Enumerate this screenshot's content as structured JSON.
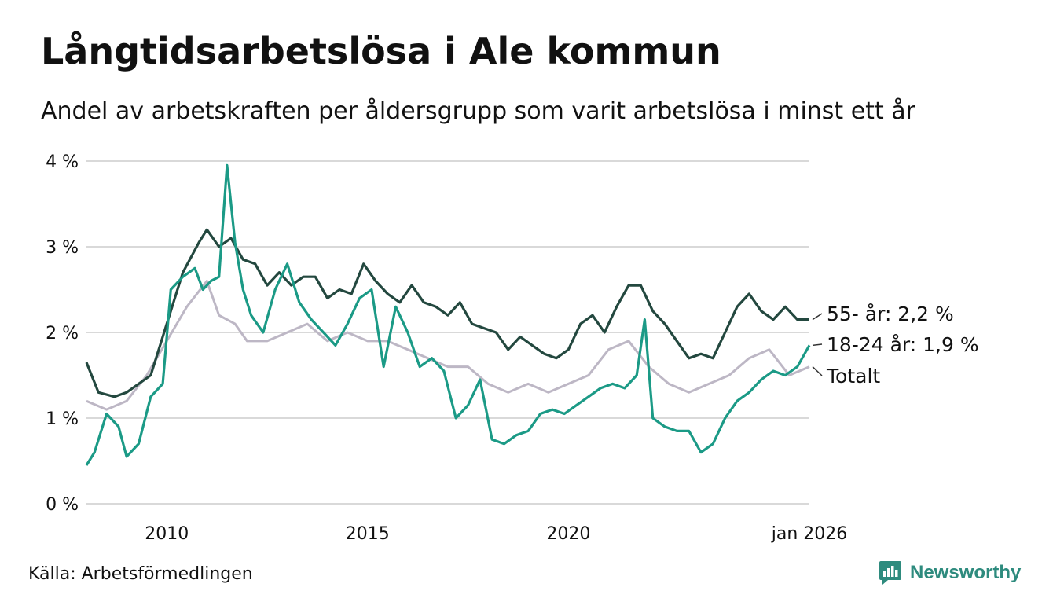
{
  "title": "Långtidsarbetslösa i Ale kommun",
  "subtitle": "Andel av arbetskraften per åldersgrupp som varit arbetslösa i minst ett år",
  "source": "Källa: Arbetsförmedlingen",
  "brand": "Newsworthy",
  "colors": {
    "s55": "#23483f",
    "s1824": "#1b9a86",
    "total": "#bdb7c5",
    "grid": "#d9d9d9",
    "brand": "#2e8b7e"
  },
  "chart_data": {
    "type": "line",
    "title": "Långtidsarbetslösa i Ale kommun",
    "xlabel": "",
    "ylabel": "",
    "xlim": [
      2008.0,
      2026.0
    ],
    "ylim": [
      0,
      4
    ],
    "y_ticks": [
      0,
      1,
      2,
      3,
      4
    ],
    "y_tick_labels": [
      "0 %",
      "1 %",
      "2 %",
      "3 %",
      "4 %"
    ],
    "x_ticks": [
      2010,
      2015,
      2020,
      2026
    ],
    "x_tick_labels": [
      "2010",
      "2015",
      "2020",
      "jan 2026"
    ],
    "series": [
      {
        "name": "Totalt",
        "label": "Totalt",
        "color": "#bdb7c5",
        "x": [
          2008.0,
          2008.5,
          2009.0,
          2009.5,
          2010.0,
          2010.5,
          2011.0,
          2011.3,
          2011.7,
          2012.0,
          2012.5,
          2013.0,
          2013.5,
          2014.0,
          2014.5,
          2015.0,
          2015.5,
          2016.0,
          2016.5,
          2017.0,
          2017.5,
          2018.0,
          2018.5,
          2019.0,
          2019.5,
          2020.0,
          2020.5,
          2021.0,
          2021.5,
          2022.0,
          2022.5,
          2023.0,
          2023.5,
          2024.0,
          2024.5,
          2025.0,
          2025.5,
          2026.0
        ],
        "y": [
          1.2,
          1.1,
          1.2,
          1.5,
          1.9,
          2.3,
          2.6,
          2.2,
          2.1,
          1.9,
          1.9,
          2.0,
          2.1,
          1.9,
          2.0,
          1.9,
          1.9,
          1.8,
          1.7,
          1.6,
          1.6,
          1.4,
          1.3,
          1.4,
          1.3,
          1.4,
          1.5,
          1.8,
          1.9,
          1.6,
          1.4,
          1.3,
          1.4,
          1.5,
          1.7,
          1.8,
          1.5,
          1.6
        ]
      },
      {
        "name": "55- år",
        "label": "55- år: 2,2 %",
        "color": "#23483f",
        "x": [
          2008.0,
          2008.3,
          2008.7,
          2009.0,
          2009.3,
          2009.6,
          2010.0,
          2010.4,
          2010.8,
          2011.0,
          2011.3,
          2011.6,
          2011.9,
          2012.2,
          2012.5,
          2012.8,
          2013.1,
          2013.4,
          2013.7,
          2014.0,
          2014.3,
          2014.6,
          2014.9,
          2015.2,
          2015.5,
          2015.8,
          2016.1,
          2016.4,
          2016.7,
          2017.0,
          2017.3,
          2017.6,
          2017.9,
          2018.2,
          2018.5,
          2018.8,
          2019.1,
          2019.4,
          2019.7,
          2020.0,
          2020.3,
          2020.6,
          2020.9,
          2021.2,
          2021.5,
          2021.8,
          2022.1,
          2022.4,
          2022.7,
          2023.0,
          2023.3,
          2023.6,
          2023.9,
          2024.2,
          2024.5,
          2024.8,
          2025.1,
          2025.4,
          2025.7,
          2026.0
        ],
        "y": [
          1.65,
          1.3,
          1.25,
          1.3,
          1.4,
          1.5,
          2.1,
          2.7,
          3.05,
          3.2,
          3.0,
          3.1,
          2.85,
          2.8,
          2.55,
          2.7,
          2.55,
          2.65,
          2.65,
          2.4,
          2.5,
          2.45,
          2.8,
          2.6,
          2.45,
          2.35,
          2.55,
          2.35,
          2.3,
          2.2,
          2.35,
          2.1,
          2.05,
          2.0,
          1.8,
          1.95,
          1.85,
          1.75,
          1.7,
          1.8,
          2.1,
          2.2,
          2.0,
          2.3,
          2.55,
          2.55,
          2.25,
          2.1,
          1.9,
          1.7,
          1.75,
          1.7,
          2.0,
          2.3,
          2.45,
          2.25,
          2.15,
          2.3,
          2.15,
          2.15
        ]
      },
      {
        "name": "18-24 år",
        "label": "18-24 år: 1,9 %",
        "color": "#1b9a86",
        "x": [
          2008.0,
          2008.2,
          2008.5,
          2008.8,
          2009.0,
          2009.3,
          2009.6,
          2009.9,
          2010.1,
          2010.4,
          2010.7,
          2010.9,
          2011.1,
          2011.3,
          2011.5,
          2011.7,
          2011.9,
          2012.1,
          2012.4,
          2012.7,
          2013.0,
          2013.3,
          2013.6,
          2013.9,
          2014.2,
          2014.5,
          2014.8,
          2015.1,
          2015.4,
          2015.7,
          2016.0,
          2016.3,
          2016.6,
          2016.9,
          2017.2,
          2017.5,
          2017.8,
          2018.1,
          2018.4,
          2018.7,
          2019.0,
          2019.3,
          2019.6,
          2019.9,
          2020.2,
          2020.5,
          2020.8,
          2021.1,
          2021.4,
          2021.7,
          2021.9,
          2022.1,
          2022.4,
          2022.7,
          2023.0,
          2023.3,
          2023.6,
          2023.9,
          2024.2,
          2024.5,
          2024.8,
          2025.1,
          2025.4,
          2025.7,
          2026.0
        ],
        "y": [
          0.45,
          0.6,
          1.05,
          0.9,
          0.55,
          0.7,
          1.25,
          1.4,
          2.5,
          2.65,
          2.75,
          2.5,
          2.6,
          2.65,
          3.95,
          3.05,
          2.5,
          2.2,
          2.0,
          2.5,
          2.8,
          2.35,
          2.15,
          2.0,
          1.85,
          2.1,
          2.4,
          2.5,
          1.6,
          2.3,
          2.0,
          1.6,
          1.7,
          1.55,
          1.0,
          1.15,
          1.45,
          0.75,
          0.7,
          0.8,
          0.85,
          1.05,
          1.1,
          1.05,
          1.15,
          1.25,
          1.35,
          1.4,
          1.35,
          1.5,
          2.15,
          1.0,
          0.9,
          0.85,
          0.85,
          0.6,
          0.7,
          1.0,
          1.2,
          1.3,
          1.45,
          1.55,
          1.5,
          1.6,
          1.85
        ]
      }
    ]
  }
}
